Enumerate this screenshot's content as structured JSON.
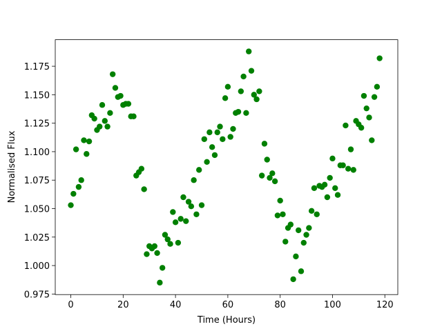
{
  "chart_data": {
    "type": "scatter",
    "x_label": "Time (Hours)",
    "y_label": "Normalised Flux",
    "color": "#008000",
    "xlim": [
      -5.95,
      124.95
    ],
    "ylim": [
      0.9745,
      1.1983
    ],
    "xticks": [
      0,
      20,
      40,
      60,
      80,
      100,
      120
    ],
    "yticks": [
      0.975,
      {
        "value": 1.0,
        "label": "1.000"
      },
      1.025,
      {
        "value": 1.05,
        "label": "1.050"
      },
      1.075,
      {
        "value": 1.1,
        "label": "1.100"
      },
      1.125,
      {
        "value": 1.15,
        "label": "1.150"
      },
      1.175
    ],
    "x": [
      0,
      1,
      2,
      3,
      4,
      5,
      6,
      7,
      8,
      9,
      10,
      11,
      12,
      13,
      14,
      15,
      16,
      17,
      18,
      19,
      20,
      21,
      22,
      23,
      24,
      25,
      26,
      27,
      28,
      29,
      30,
      31,
      32,
      33,
      34,
      35,
      36,
      37,
      38,
      39,
      40,
      41,
      42,
      43,
      44,
      45,
      46,
      47,
      48,
      49,
      50,
      51,
      52,
      53,
      54,
      55,
      56,
      57,
      58,
      59,
      60,
      61,
      62,
      63,
      64,
      65,
      66,
      67,
      68,
      69,
      70,
      71,
      72,
      73,
      74,
      75,
      76,
      77,
      78,
      79,
      80,
      81,
      82,
      83,
      84,
      85,
      86,
      87,
      88,
      89,
      90,
      91,
      92,
      93,
      94,
      95,
      96,
      97,
      98,
      99,
      100,
      101,
      102,
      103,
      104,
      105,
      106,
      107,
      108,
      109,
      110,
      111,
      112,
      113,
      114,
      115,
      116,
      117,
      118
    ],
    "values": [
      1.053,
      1.063,
      1.102,
      1.069,
      1.075,
      1.11,
      1.098,
      1.109,
      1.132,
      1.129,
      1.119,
      1.122,
      1.141,
      1.127,
      1.122,
      1.134,
      1.168,
      1.156,
      1.148,
      1.149,
      1.141,
      1.142,
      1.142,
      1.131,
      1.131,
      1.079,
      1.082,
      1.085,
      1.067,
      1.01,
      1.017,
      1.015,
      1.017,
      1.011,
      0.985,
      0.998,
      1.027,
      1.023,
      1.019,
      1.047,
      1.038,
      1.02,
      1.041,
      1.06,
      1.039,
      1.056,
      1.052,
      1.075,
      1.045,
      1.084,
      1.053,
      1.111,
      1.091,
      1.117,
      1.104,
      1.097,
      1.117,
      1.122,
      1.111,
      1.147,
      1.157,
      1.113,
      1.12,
      1.134,
      1.135,
      1.153,
      1.166,
      1.134,
      1.188,
      1.171,
      1.15,
      1.146,
      1.153,
      1.079,
      1.107,
      1.093,
      1.077,
      1.081,
      1.074,
      1.044,
      1.057,
      1.045,
      1.021,
      1.033,
      1.036,
      0.988,
      1.008,
      1.031,
      0.995,
      1.02,
      1.027,
      1.033,
      1.048,
      1.068,
      1.045,
      1.07,
      1.069,
      1.071,
      1.06,
      1.077,
      1.094,
      1.068,
      1.062,
      1.088,
      1.088,
      1.123,
      1.085,
      1.102,
      1.084,
      1.127,
      1.124,
      1.121,
      1.149,
      1.138,
      1.13,
      1.11,
      1.148,
      1.157,
      1.182
    ]
  }
}
